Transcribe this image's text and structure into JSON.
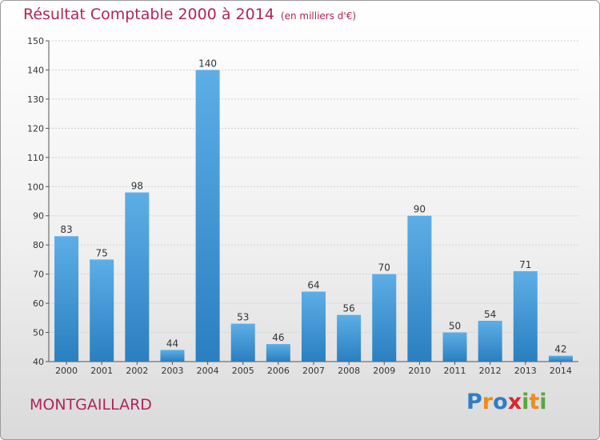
{
  "title": "Résultat Comptable 2000 à 2014",
  "unit": "(en milliers d'€)",
  "commune": "MONTGAILLARD",
  "logo": {
    "text": "Proxiti",
    "letters": [
      {
        "ch": "P",
        "color": "#2f7ec3"
      },
      {
        "ch": "r",
        "color": "#f08a1c"
      },
      {
        "ch": "o",
        "color": "#2f7ec3"
      },
      {
        "ch": "x",
        "color": "#d9262f"
      },
      {
        "ch": "i",
        "color": "#5aa83a"
      },
      {
        "ch": "t",
        "color": "#f08a1c"
      },
      {
        "ch": "i",
        "color": "#5aa83a"
      }
    ]
  },
  "colors": {
    "title": "#b0245a",
    "bar_top": "#5daee6",
    "bar_bottom": "#2a7fc0",
    "grid": "#d0d0d0",
    "axis_text": "#333333"
  },
  "chart_data": {
    "type": "bar",
    "categories": [
      "2000",
      "2001",
      "2002",
      "2003",
      "2004",
      "2005",
      "2006",
      "2007",
      "2008",
      "2009",
      "2010",
      "2011",
      "2012",
      "2013",
      "2014"
    ],
    "values": [
      83,
      75,
      98,
      44,
      140,
      53,
      46,
      64,
      56,
      70,
      90,
      50,
      54,
      71,
      42
    ],
    "data_labels": [
      "83",
      "75",
      "98",
      "44",
      "140",
      "53",
      "46",
      "64",
      "56",
      "70",
      "90",
      "50",
      "54",
      "71",
      "42"
    ],
    "ylim": [
      40,
      150
    ],
    "yticks": [
      40,
      50,
      60,
      70,
      80,
      90,
      100,
      110,
      120,
      130,
      140,
      150
    ],
    "ytick_labels": [
      "40",
      "50",
      "60",
      "70",
      "80",
      "90",
      "100",
      "110",
      "120",
      "130",
      "140",
      "150"
    ],
    "grid": true,
    "legend": "none"
  }
}
